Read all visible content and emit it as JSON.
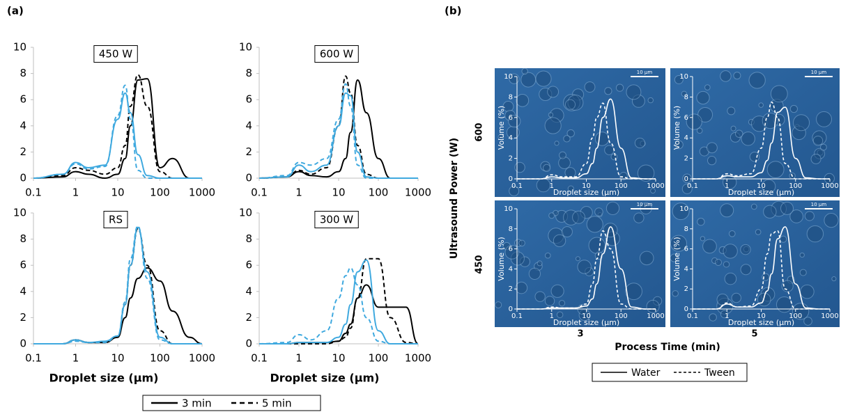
{
  "panel_labels": [
    "(a)",
    "(b)"
  ],
  "panel_b": {
    "row_labels": [
      "600",
      "450"
    ],
    "column_labels": [
      "3",
      "5"
    ],
    "ylabel": "Ultrasound Power (W)",
    "xlabel": "Process Time (min)"
  },
  "legends": [
    {
      "items": [
        {
          "name": "3 min",
          "color": "#000000",
          "dash": false
        },
        {
          "name": "5 min",
          "color": "#000000",
          "dash": true
        }
      ]
    },
    {
      "items": [
        {
          "name": "Water",
          "color": "#000000",
          "dash": false
        },
        {
          "name": "Tween",
          "color": "#000000",
          "dash": true
        }
      ]
    }
  ],
  "chart_data": [
    {
      "type": "line",
      "title": "450 W",
      "xscale": "log",
      "xlim": [
        0.1,
        1000
      ],
      "ylim": [
        0,
        10
      ],
      "xticks": [
        0.1,
        1,
        10,
        100,
        1000
      ],
      "yticks": [
        0,
        2,
        4,
        6,
        8,
        10
      ],
      "x": [
        0.1,
        0.5,
        1,
        2,
        5,
        10,
        15,
        20,
        30,
        50,
        100,
        200,
        500,
        1000
      ],
      "series": [
        {
          "color": "#000000",
          "dash": false,
          "values": [
            0,
            0.1,
            0.5,
            0.3,
            0,
            0.3,
            1.5,
            4,
            7.5,
            7.6,
            0.8,
            1.5,
            0,
            0
          ]
        },
        {
          "color": "#000000",
          "dash": true,
          "values": [
            0,
            0.2,
            0.8,
            0.6,
            0.3,
            0.8,
            2.5,
            5.5,
            7.9,
            5.5,
            0.5,
            0,
            0,
            0
          ]
        },
        {
          "color": "#3fa9df",
          "dash": false,
          "values": [
            0,
            0.3,
            1.2,
            0.8,
            1,
            4.5,
            6.5,
            5,
            1.8,
            0.2,
            0,
            0,
            0,
            0
          ]
        },
        {
          "color": "#3fa9df",
          "dash": true,
          "values": [
            0,
            0.3,
            1.1,
            0.7,
            0.9,
            4.8,
            7.1,
            4.5,
            0.6,
            0,
            0,
            0,
            0,
            0
          ]
        }
      ]
    },
    {
      "type": "line",
      "title": "600 W",
      "xscale": "log",
      "xlim": [
        0.1,
        1000
      ],
      "ylim": [
        0,
        10
      ],
      "xticks": [
        0.1,
        1,
        10,
        100,
        1000
      ],
      "yticks": [
        0,
        2,
        4,
        6,
        8,
        10
      ],
      "x": [
        0.1,
        0.5,
        1,
        2,
        5,
        10,
        15,
        20,
        30,
        50,
        100,
        200,
        500,
        1000
      ],
      "series": [
        {
          "color": "#000000",
          "dash": false,
          "values": [
            0,
            0.1,
            0.5,
            0.2,
            0.1,
            0.5,
            1.5,
            3.5,
            7.5,
            5,
            1.5,
            0,
            0,
            0
          ]
        },
        {
          "color": "#000000",
          "dash": true,
          "values": [
            0,
            0.1,
            0.6,
            0.3,
            0.8,
            4,
            7.8,
            6.5,
            2.5,
            0.3,
            0,
            0,
            0,
            0
          ]
        },
        {
          "color": "#3fa9df",
          "dash": false,
          "values": [
            0,
            0.1,
            1,
            0.5,
            1,
            4,
            6.5,
            6.3,
            2,
            0.1,
            0,
            0,
            0,
            0
          ]
        },
        {
          "color": "#3fa9df",
          "dash": true,
          "values": [
            0,
            0.2,
            1.2,
            1,
            1.5,
            4.5,
            7.2,
            5.5,
            1,
            0,
            0,
            0,
            0,
            0
          ]
        }
      ]
    },
    {
      "type": "line",
      "title": "RS",
      "xlabel": "Droplet size (µm)",
      "xscale": "log",
      "xlim": [
        0.1,
        1000
      ],
      "ylim": [
        0,
        10
      ],
      "xticks": [
        0.1,
        1,
        10,
        100,
        1000
      ],
      "yticks": [
        0,
        2,
        4,
        6,
        8,
        10
      ],
      "x": [
        0.1,
        0.5,
        1,
        2,
        5,
        10,
        15,
        20,
        30,
        50,
        100,
        200,
        500,
        1000
      ],
      "series": [
        {
          "color": "#000000",
          "dash": false,
          "values": [
            0,
            0,
            0.3,
            0.1,
            0.1,
            0.5,
            2,
            3.5,
            5,
            5.8,
            4.8,
            2.5,
            0.5,
            0
          ]
        },
        {
          "color": "#000000",
          "dash": true,
          "values": [
            0,
            0,
            0.3,
            0.1,
            0.1,
            0.5,
            3,
            6,
            8.8,
            6,
            1,
            0,
            0,
            0
          ]
        },
        {
          "color": "#3fa9df",
          "dash": false,
          "values": [
            0,
            0,
            0.3,
            0.1,
            0.2,
            0.6,
            3,
            6,
            8.9,
            5.5,
            0.5,
            0,
            0,
            0
          ]
        },
        {
          "color": "#3fa9df",
          "dash": true,
          "values": [
            0,
            0,
            0.2,
            0.1,
            0.1,
            0.6,
            3.2,
            6.5,
            9,
            5,
            0.3,
            0,
            0,
            0
          ]
        }
      ]
    },
    {
      "type": "line",
      "title": "300 W",
      "xlabel": "Droplet size (µm)",
      "xscale": "log",
      "xlim": [
        0.1,
        1000
      ],
      "ylim": [
        0,
        10
      ],
      "xticks": [
        0.1,
        1,
        10,
        100,
        1000
      ],
      "yticks": [
        0,
        2,
        4,
        6,
        8,
        10
      ],
      "x": [
        0.1,
        0.5,
        1,
        2,
        5,
        10,
        15,
        20,
        30,
        50,
        100,
        200,
        500,
        1000
      ],
      "series": [
        {
          "color": "#000000",
          "dash": false,
          "values": [
            0,
            0,
            0.1,
            0.1,
            0.1,
            0.2,
            0.8,
            1.5,
            3.5,
            4.5,
            2.8,
            2.8,
            2.8,
            0
          ]
        },
        {
          "color": "#000000",
          "dash": true,
          "values": [
            0,
            0,
            0,
            0,
            0,
            0.2,
            0.5,
            1.2,
            3.5,
            6.5,
            6.5,
            2,
            0.1,
            0
          ]
        },
        {
          "color": "#3fa9df",
          "dash": false,
          "values": [
            0,
            0,
            0.1,
            0.1,
            0.1,
            0.5,
            1.5,
            3,
            5.5,
            6.4,
            1,
            0,
            0,
            0
          ]
        },
        {
          "color": "#3fa9df",
          "dash": true,
          "values": [
            0,
            0.1,
            0.7,
            0.3,
            1,
            3.5,
            5.2,
            5.8,
            4.5,
            2,
            0.2,
            0,
            0,
            0
          ]
        }
      ]
    },
    {
      "type": "line",
      "annotation": "10 µm",
      "xlabel": "Droplet size (µm)",
      "ylabel": "Volume (%)",
      "xscale": "log",
      "xlim": [
        0.1,
        1000
      ],
      "ylim": [
        0,
        10
      ],
      "xticks": [
        0.1,
        1,
        10,
        100,
        1000
      ],
      "yticks": [
        0,
        2,
        4,
        6,
        8,
        10
      ],
      "x": [
        0.1,
        0.5,
        1,
        2,
        5,
        10,
        15,
        20,
        30,
        50,
        100,
        200,
        500,
        1000
      ],
      "series": [
        {
          "color": "#ffffff",
          "dash": false,
          "values": [
            0,
            0,
            0.2,
            0.1,
            0.1,
            0.5,
            1.5,
            3,
            6,
            7.8,
            3,
            0.1,
            0,
            0
          ]
        },
        {
          "color": "#ffffff",
          "dash": true,
          "values": [
            0,
            0,
            0.4,
            0.2,
            0.2,
            1.5,
            4,
            6,
            7.4,
            3.5,
            0.2,
            0,
            0,
            0
          ]
        }
      ]
    },
    {
      "type": "line",
      "annotation": "10 µm",
      "xlabel": "Droplet size (µm)",
      "ylabel": "Volume (%)",
      "xscale": "log",
      "xlim": [
        0.1,
        1000
      ],
      "ylim": [
        0,
        10
      ],
      "xticks": [
        0.1,
        1,
        10,
        100,
        1000
      ],
      "yticks": [
        0,
        2,
        4,
        6,
        8,
        10
      ],
      "x": [
        0.1,
        0.5,
        1,
        2,
        5,
        10,
        15,
        20,
        30,
        50,
        100,
        200,
        500,
        1000
      ],
      "series": [
        {
          "color": "#ffffff",
          "dash": false,
          "values": [
            0,
            0,
            0.3,
            0.2,
            0.2,
            0.6,
            1.8,
            3.5,
            6.5,
            7,
            2,
            0.1,
            0,
            0
          ]
        },
        {
          "color": "#ffffff",
          "dash": true,
          "values": [
            0,
            0,
            0.5,
            0.3,
            0.5,
            3,
            6,
            7.5,
            6,
            1.5,
            0,
            0,
            0,
            0
          ]
        }
      ]
    },
    {
      "type": "line",
      "annotation": "10 µm",
      "xlabel": "Droplet size (µm)",
      "ylabel": "Volume (%)",
      "xscale": "log",
      "xlim": [
        0.1,
        1000
      ],
      "ylim": [
        0,
        10
      ],
      "xticks": [
        0.1,
        1,
        10,
        100,
        1000
      ],
      "yticks": [
        0,
        2,
        4,
        6,
        8,
        10
      ],
      "x": [
        0.1,
        0.5,
        1,
        2,
        5,
        10,
        15,
        20,
        30,
        50,
        100,
        200,
        500,
        1000
      ],
      "series": [
        {
          "color": "#ffffff",
          "dash": false,
          "values": [
            0,
            0,
            0.1,
            0.1,
            0.1,
            0.3,
            1,
            2.5,
            5.5,
            8.2,
            4,
            0.2,
            0,
            0
          ]
        },
        {
          "color": "#ffffff",
          "dash": true,
          "values": [
            0,
            0,
            0.2,
            0.1,
            0.1,
            0.5,
            2.5,
            5,
            7.8,
            6,
            0.5,
            0,
            0,
            0
          ]
        }
      ]
    },
    {
      "type": "line",
      "annotation": "10 µm",
      "xlabel": "Droplet size (µm)",
      "ylabel": "Volume (%)",
      "xscale": "log",
      "xlim": [
        0.1,
        1000
      ],
      "ylim": [
        0,
        10
      ],
      "xticks": [
        0.1,
        1,
        10,
        100,
        1000
      ],
      "yticks": [
        0,
        2,
        4,
        6,
        8,
        10
      ],
      "x": [
        0.1,
        0.5,
        1,
        2,
        5,
        10,
        15,
        20,
        30,
        50,
        100,
        200,
        500,
        1000
      ],
      "series": [
        {
          "color": "#ffffff",
          "dash": false,
          "values": [
            0,
            0,
            0.5,
            0.2,
            0.2,
            0.6,
            1.8,
            3.5,
            7,
            8.2,
            2.5,
            0.1,
            0,
            0
          ]
        },
        {
          "color": "#ffffff",
          "dash": true,
          "values": [
            0,
            0,
            0.6,
            0.2,
            0.3,
            2,
            5.5,
            7.5,
            7.8,
            2,
            0,
            0,
            0,
            0
          ]
        }
      ]
    }
  ]
}
